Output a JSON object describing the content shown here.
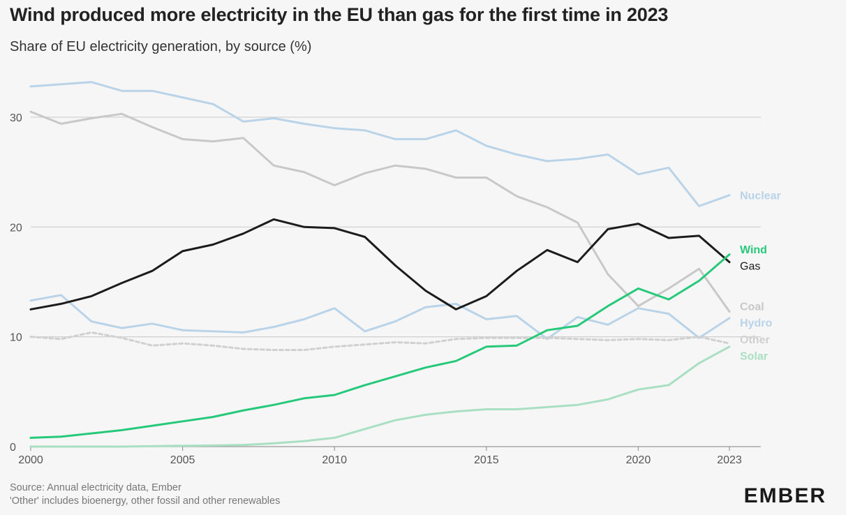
{
  "title": "Wind produced more electricity in the EU than gas for the first time in 2023",
  "subtitle": "Share of EU electricity generation, by source (%)",
  "footer": {
    "source": "Source: Annual electricity data, Ember",
    "note": "'Other' includes bioenergy, other fossil and other renewables"
  },
  "logo": "EMBER",
  "chart_data": {
    "type": "line",
    "title": "Wind produced more electricity in the EU than gas for the first time in 2023",
    "subtitle": "Share of EU electricity generation, by source (%)",
    "xlabel": "",
    "ylabel": "",
    "x": [
      2000,
      2001,
      2002,
      2003,
      2004,
      2005,
      2006,
      2007,
      2008,
      2009,
      2010,
      2011,
      2012,
      2013,
      2014,
      2015,
      2016,
      2017,
      2018,
      2019,
      2020,
      2021,
      2022,
      2023
    ],
    "xticks": [
      2000,
      2005,
      2010,
      2015,
      2020,
      2023
    ],
    "yticks": [
      0,
      10,
      20,
      30
    ],
    "ylim": [
      0,
      34
    ],
    "grid": "horizontal",
    "legend": "inline-right",
    "series": [
      {
        "name": "Nuclear",
        "color": "#b9d3e8",
        "dash": false,
        "bold": true,
        "values": [
          32.8,
          33.0,
          33.2,
          32.4,
          32.4,
          31.8,
          31.2,
          29.6,
          29.9,
          29.4,
          29.0,
          28.8,
          28.0,
          28.0,
          28.8,
          27.4,
          26.6,
          26.0,
          26.2,
          26.6,
          24.8,
          25.4,
          21.9,
          22.9
        ]
      },
      {
        "name": "Coal",
        "color": "#c8c8c8",
        "dash": false,
        "bold": true,
        "values": [
          30.5,
          29.4,
          29.9,
          30.3,
          29.1,
          28.0,
          27.8,
          28.1,
          25.6,
          25.0,
          23.8,
          24.9,
          25.6,
          25.3,
          24.5,
          24.5,
          22.8,
          21.8,
          20.4,
          15.7,
          12.8,
          14.4,
          16.2,
          12.3
        ]
      },
      {
        "name": "Hydro",
        "color": "#b9d3e8",
        "dash": false,
        "bold": true,
        "values": [
          13.3,
          13.8,
          11.4,
          10.8,
          11.2,
          10.6,
          10.5,
          10.4,
          10.9,
          11.6,
          12.6,
          10.5,
          11.4,
          12.7,
          13.0,
          11.6,
          11.9,
          9.8,
          11.8,
          11.1,
          12.6,
          12.1,
          9.9,
          11.7
        ]
      },
      {
        "name": "Other",
        "color": "#d0d0d0",
        "dash": true,
        "bold": true,
        "values": [
          10.0,
          9.8,
          10.4,
          9.9,
          9.2,
          9.4,
          9.2,
          8.9,
          8.8,
          8.8,
          9.1,
          9.3,
          9.5,
          9.4,
          9.8,
          9.9,
          9.9,
          9.9,
          9.8,
          9.7,
          9.8,
          9.7,
          10.0,
          9.4
        ]
      },
      {
        "name": "Solar",
        "color": "#a9dfc3",
        "dash": false,
        "bold": true,
        "values": [
          0.0,
          0.0,
          0.0,
          0.0,
          0.04,
          0.08,
          0.1,
          0.15,
          0.3,
          0.5,
          0.8,
          1.6,
          2.4,
          2.9,
          3.2,
          3.4,
          3.4,
          3.6,
          3.8,
          4.3,
          5.2,
          5.6,
          7.6,
          9.1
        ]
      },
      {
        "name": "Gas",
        "color": "#1c1c1c",
        "dash": false,
        "bold": false,
        "values": [
          12.5,
          13.0,
          13.7,
          14.9,
          16.0,
          17.8,
          18.4,
          19.4,
          20.7,
          20.0,
          19.9,
          19.1,
          16.5,
          14.2,
          12.5,
          13.7,
          16.0,
          17.9,
          16.8,
          19.8,
          20.3,
          19.0,
          19.2,
          16.8
        ]
      },
      {
        "name": "Wind",
        "color": "#26c97a",
        "dash": false,
        "bold": true,
        "values": [
          0.8,
          0.9,
          1.2,
          1.5,
          1.9,
          2.3,
          2.7,
          3.3,
          3.8,
          4.4,
          4.7,
          5.6,
          6.4,
          7.2,
          7.8,
          9.1,
          9.2,
          10.6,
          11.0,
          12.8,
          14.4,
          13.4,
          15.1,
          17.5
        ]
      }
    ],
    "labels_order": [
      {
        "name": "Nuclear",
        "y_label": 22.9
      },
      {
        "name": "Wind",
        "y_label": 18.0
      },
      {
        "name": "Gas",
        "y_label": 16.5
      },
      {
        "name": "Coal",
        "y_label": 12.8
      },
      {
        "name": "Hydro",
        "y_label": 11.3
      },
      {
        "name": "Other",
        "y_label": 9.8
      },
      {
        "name": "Solar",
        "y_label": 8.3
      }
    ]
  }
}
